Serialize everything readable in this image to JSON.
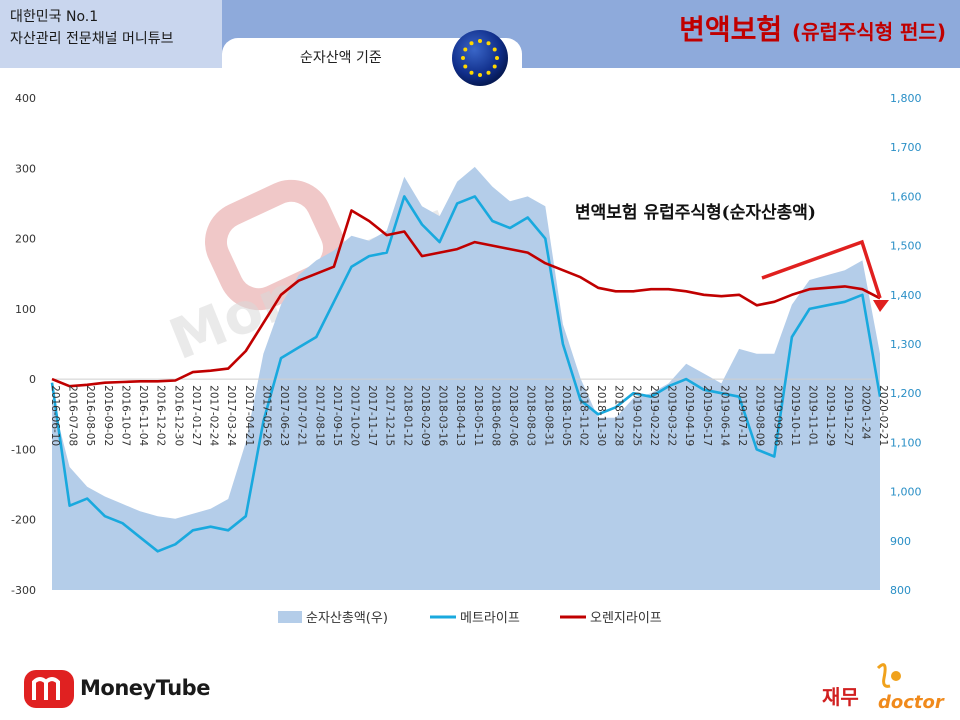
{
  "header": {
    "brand_line1": "대한민국 No.1",
    "brand_line2": "자산관리 전문채널 머니튜브",
    "basis": "순자산액 기준",
    "title_main": "변액보험",
    "title_sub": "(유럽주식형 펀드)"
  },
  "watermark": "MoneyTube",
  "footer": {
    "logo_text": "MoneyTube",
    "right_logo_ko": "재무",
    "right_logo_en": "doctor"
  },
  "colors": {
    "area": "#b4cde9",
    "metlife": "#19a9de",
    "orange": "#c00000",
    "header": "#8eaadb",
    "title": "#c00000"
  },
  "chart_data": {
    "type": "line",
    "annotation": "변액보험 유럽주식형(순자산총액)",
    "left_axis": {
      "ticks": [
        "400",
        "300",
        "200",
        "100",
        "0",
        "-100",
        "-200",
        "-300"
      ],
      "ylim": [
        -300,
        400
      ]
    },
    "right_axis": {
      "ticks": [
        "1,800",
        "1,700",
        "1,600",
        "1,500",
        "1,400",
        "1,300",
        "1,200",
        "1,100",
        "1,000",
        "900",
        "800"
      ],
      "ylim": [
        800,
        1800
      ]
    },
    "x_labels": [
      "2016-06-10",
      "2016-07-08",
      "2016-08-05",
      "2016-09-02",
      "2016-10-07",
      "2016-11-04",
      "2016-12-02",
      "2016-12-30",
      "2017-01-27",
      "2017-02-24",
      "2017-03-24",
      "2017-04-21",
      "2017-05-26",
      "2017-06-23",
      "2017-07-21",
      "2017-08-18",
      "2017-09-15",
      "2017-10-20",
      "2017-11-17",
      "2017-12-15",
      "2018-01-12",
      "2018-02-09",
      "2018-03-16",
      "2018-04-13",
      "2018-05-11",
      "2018-06-08",
      "2018-07-06",
      "2018-08-03",
      "2018-08-31",
      "2018-10-05",
      "2018-11-02",
      "2018-11-30",
      "2018-12-28",
      "2019-01-25",
      "2019-02-22",
      "2019-03-22",
      "2019-04-19",
      "2019-05-17",
      "2019-06-14",
      "2019-07-12",
      "2019-08-09",
      "2019-09-06",
      "2019-10-11",
      "2019-11-01",
      "2019-11-29",
      "2019-12-27",
      "2020-1-24",
      "2020-02-21"
    ],
    "legend_position": "bottom",
    "series": [
      {
        "name": "순자산총액(우)",
        "axis": "right",
        "type": "area",
        "values": [
          1190,
          1050,
          1010,
          990,
          975,
          960,
          950,
          945,
          955,
          965,
          985,
          1100,
          1280,
          1380,
          1440,
          1470,
          1490,
          1520,
          1510,
          1530,
          1640,
          1580,
          1560,
          1630,
          1660,
          1620,
          1590,
          1600,
          1580,
          1340,
          1230,
          1150,
          1150,
          1190,
          1200,
          1220,
          1260,
          1240,
          1220,
          1290,
          1280,
          1280,
          1380,
          1430,
          1440,
          1450,
          1470,
          1280
        ]
      },
      {
        "name": "메트라이프",
        "axis": "left",
        "type": "line",
        "values": [
          -5,
          -180,
          -170,
          -195,
          -205,
          -225,
          -245,
          -235,
          -215,
          -210,
          -215,
          -195,
          -60,
          30,
          45,
          60,
          110,
          160,
          175,
          180,
          260,
          220,
          195,
          250,
          260,
          225,
          215,
          230,
          200,
          50,
          -30,
          -50,
          -40,
          -20,
          -25,
          -10,
          0,
          -15,
          -20,
          -25,
          -100,
          -110,
          60,
          100,
          105,
          110,
          120,
          -25
        ]
      },
      {
        "name": "오렌지라이프",
        "axis": "left",
        "type": "line",
        "values": [
          0,
          -10,
          -8,
          -5,
          -4,
          -3,
          -3,
          -2,
          10,
          12,
          15,
          40,
          80,
          120,
          140,
          150,
          160,
          240,
          225,
          205,
          210,
          175,
          180,
          185,
          195,
          190,
          185,
          180,
          165,
          155,
          145,
          130,
          125,
          125,
          128,
          128,
          125,
          120,
          118,
          120,
          105,
          110,
          120,
          128,
          130,
          132,
          128,
          115
        ]
      }
    ]
  }
}
